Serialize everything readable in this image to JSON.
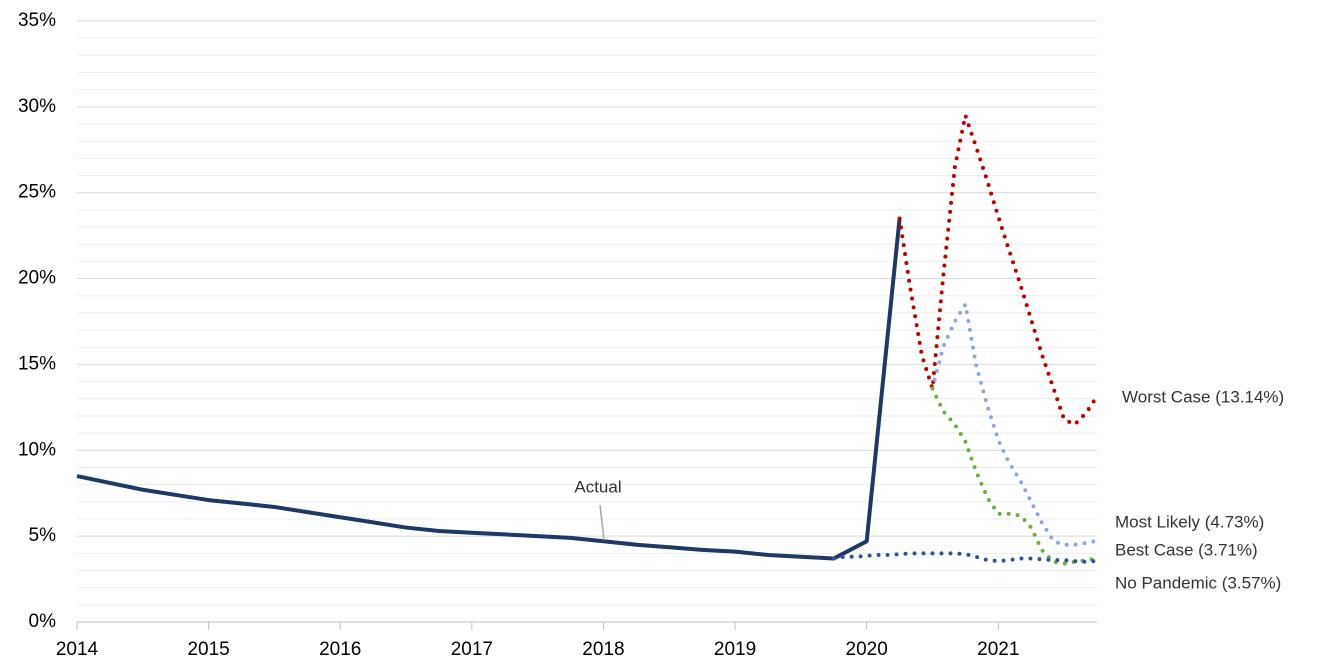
{
  "chart_data": {
    "type": "line",
    "xlim": [
      2014,
      2021.75
    ],
    "xticks": [
      2014,
      2015,
      2016,
      2017,
      2018,
      2019,
      2020,
      2021
    ],
    "ylim": [
      0,
      35
    ],
    "yticks": [
      {
        "value": 0,
        "label": "0%"
      },
      {
        "value": 5,
        "label": "5%"
      },
      {
        "value": 10,
        "label": "10%"
      },
      {
        "value": 15,
        "label": "15%"
      },
      {
        "value": 20,
        "label": "20%"
      },
      {
        "value": 25,
        "label": "25%"
      },
      {
        "value": 30,
        "label": "30%"
      },
      {
        "value": 35,
        "label": "35%"
      }
    ],
    "yminor_ticks": [
      1,
      2,
      3,
      4,
      6,
      7,
      8,
      9,
      11,
      12,
      13,
      14,
      16,
      17,
      18,
      19,
      21,
      22,
      23,
      24,
      26,
      27,
      28,
      29,
      31,
      32,
      33,
      34
    ],
    "grid": true,
    "series": [
      {
        "name": "Actual",
        "color": "#1f3864",
        "style": "solid",
        "x": [
          2014,
          2014.25,
          2014.5,
          2014.75,
          2015,
          2015.25,
          2015.5,
          2015.75,
          2016,
          2016.25,
          2016.5,
          2016.75,
          2017,
          2017.25,
          2017.5,
          2017.75,
          2018,
          2018.25,
          2018.5,
          2018.75,
          2019,
          2019.25,
          2019.5,
          2019.75,
          2020,
          2020.25
        ],
        "values": [
          8.5,
          8.1,
          7.7,
          7.4,
          7.1,
          6.9,
          6.7,
          6.4,
          6.1,
          5.8,
          5.5,
          5.3,
          5.2,
          5.1,
          5.0,
          4.9,
          4.7,
          4.5,
          4.35,
          4.2,
          4.1,
          3.9,
          3.8,
          3.7,
          4.7,
          23.5
        ]
      },
      {
        "name": "Worst Case (13.14%)",
        "color": "#c00000",
        "style": "dotted",
        "x": [
          2020.25,
          2020.33,
          2020.42,
          2020.5,
          2020.58,
          2020.67,
          2020.75,
          2020.83,
          2020.92,
          2021,
          2021.08,
          2021.17,
          2021.25,
          2021.33,
          2021.42,
          2021.5,
          2021.58,
          2021.67,
          2021.75
        ],
        "values": [
          23.5,
          19.5,
          15.5,
          13.6,
          20,
          26.5,
          29.5,
          27.7,
          25.6,
          23.6,
          21.7,
          19.6,
          17.6,
          15.6,
          13.6,
          11.8,
          11.5,
          12.2,
          13.14
        ]
      },
      {
        "name": "Most Likely (4.73%)",
        "color": "#8eaadb",
        "style": "dotted",
        "x": [
          2020.5,
          2020.58,
          2020.67,
          2020.75,
          2020.83,
          2020.92,
          2021,
          2021.08,
          2021.17,
          2021.25,
          2021.33,
          2021.42,
          2021.5,
          2021.58,
          2021.67,
          2021.75
        ],
        "values": [
          13.6,
          16,
          17.5,
          18.5,
          15,
          12.5,
          10.6,
          9.3,
          8.2,
          7,
          5.8,
          4.7,
          4.5,
          4.5,
          4.6,
          4.73
        ]
      },
      {
        "name": "Best Case (3.71%)",
        "color": "#70ad47",
        "style": "dotted",
        "x": [
          2020.5,
          2020.58,
          2020.67,
          2020.75,
          2020.83,
          2020.92,
          2021,
          2021.08,
          2021.17,
          2021.25,
          2021.33,
          2021.42,
          2021.5,
          2021.58,
          2021.67,
          2021.75
        ],
        "values": [
          13.6,
          12.3,
          11.5,
          10.5,
          8.8,
          7.2,
          6.3,
          6.3,
          6.2,
          5.5,
          4.2,
          3.5,
          3.4,
          3.5,
          3.6,
          3.71
        ]
      },
      {
        "name": "No Pandemic (3.57%)",
        "color": "#2f5597",
        "style": "dotted",
        "x": [
          2019.75,
          2019.83,
          2019.92,
          2020,
          2020.08,
          2020.17,
          2020.25,
          2020.33,
          2020.42,
          2020.5,
          2020.58,
          2020.67,
          2020.75,
          2020.83,
          2020.92,
          2021,
          2021.08,
          2021.17,
          2021.25,
          2021.33,
          2021.42,
          2021.5,
          2021.58,
          2021.67,
          2021.75
        ],
        "values": [
          3.7,
          3.8,
          3.8,
          3.85,
          3.9,
          3.9,
          3.95,
          4.0,
          4.0,
          4.0,
          4.0,
          4.0,
          3.95,
          3.8,
          3.6,
          3.55,
          3.6,
          3.7,
          3.7,
          3.65,
          3.6,
          3.6,
          3.55,
          3.5,
          3.57
        ]
      }
    ]
  }
}
